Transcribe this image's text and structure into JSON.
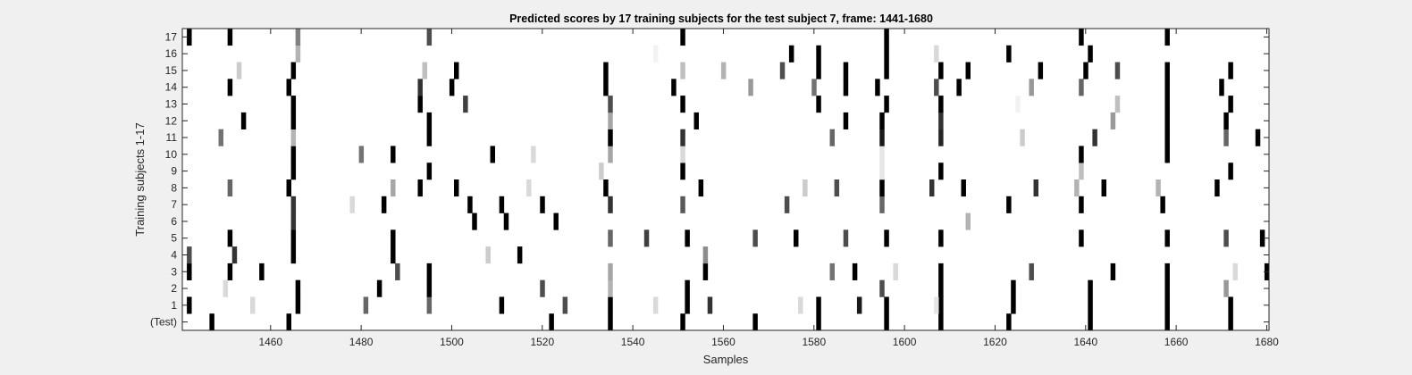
{
  "chart_data": {
    "type": "heatmap",
    "title": "Predicted scores by 17 training subjects for the test subject 7, frame: 1441-1680",
    "xlabel": "Samples",
    "ylabel": "Training subjects 1-17",
    "xlim": [
      1441,
      1680
    ],
    "x_ticks": [
      1460,
      1480,
      1500,
      1520,
      1540,
      1560,
      1580,
      1600,
      1620,
      1640,
      1660,
      1680
    ],
    "rows": [
      "(Test)",
      "1",
      "2",
      "3",
      "4",
      "5",
      "6",
      "7",
      "8",
      "9",
      "10",
      "11",
      "12",
      "13",
      "14",
      "15",
      "16",
      "17"
    ],
    "colormap": "gray (1 = black, 0 = white)",
    "background_value": 0,
    "cells": [
      {
        "row": "(Test)",
        "marks": [
          [
            1447,
            1
          ],
          [
            1464,
            1
          ],
          [
            1522,
            1
          ],
          [
            1535,
            1
          ],
          [
            1551,
            1
          ],
          [
            1567,
            1
          ],
          [
            1581,
            1
          ],
          [
            1596,
            1
          ],
          [
            1608,
            1
          ],
          [
            1623,
            1
          ],
          [
            1641,
            1
          ],
          [
            1658,
            1
          ],
          [
            1672,
            1
          ]
        ]
      },
      {
        "row": "1",
        "marks": [
          [
            1442,
            1
          ],
          [
            1466,
            1
          ],
          [
            1456,
            0.15
          ],
          [
            1481,
            0.6
          ],
          [
            1495,
            0.6
          ],
          [
            1511,
            1
          ],
          [
            1525,
            0.7
          ],
          [
            1535,
            1
          ],
          [
            1545,
            0.15
          ],
          [
            1552,
            1
          ],
          [
            1557,
            0.8
          ],
          [
            1577,
            0.15
          ],
          [
            1581,
            1
          ],
          [
            1590,
            0.9
          ],
          [
            1596,
            1
          ],
          [
            1608,
            1
          ],
          [
            1607,
            0.1
          ],
          [
            1624,
            1
          ],
          [
            1641,
            1
          ],
          [
            1658,
            1
          ],
          [
            1672,
            1
          ]
        ]
      },
      {
        "row": "2",
        "marks": [
          [
            1450,
            0.15
          ],
          [
            1466,
            1
          ],
          [
            1484,
            1
          ],
          [
            1495,
            1
          ],
          [
            1520,
            0.7
          ],
          [
            1535,
            0.3
          ],
          [
            1552,
            1
          ],
          [
            1595,
            0.7
          ],
          [
            1608,
            1
          ],
          [
            1624,
            1
          ],
          [
            1641,
            1
          ],
          [
            1658,
            1
          ],
          [
            1671,
            0.4
          ]
        ]
      },
      {
        "row": "3",
        "marks": [
          [
            1442,
            1
          ],
          [
            1451,
            1
          ],
          [
            1458,
            1
          ],
          [
            1488,
            0.7
          ],
          [
            1495,
            1
          ],
          [
            1535,
            0.35
          ],
          [
            1556,
            1
          ],
          [
            1584,
            0.55
          ],
          [
            1589,
            1
          ],
          [
            1598,
            0.15
          ],
          [
            1608,
            1
          ],
          [
            1628,
            0.7
          ],
          [
            1646,
            1
          ],
          [
            1658,
            1
          ],
          [
            1673,
            0.15
          ],
          [
            1680,
            1
          ]
        ]
      },
      {
        "row": "4",
        "marks": [
          [
            1442,
            0.7
          ],
          [
            1452,
            0.8
          ],
          [
            1465,
            1
          ],
          [
            1487,
            1
          ],
          [
            1508,
            0.2
          ],
          [
            1515,
            1
          ],
          [
            1556,
            0.45
          ]
        ]
      },
      {
        "row": "5",
        "marks": [
          [
            1451,
            1
          ],
          [
            1465,
            1
          ],
          [
            1487,
            1
          ],
          [
            1535,
            0.6
          ],
          [
            1543,
            0.75
          ],
          [
            1552,
            1
          ],
          [
            1567,
            0.7
          ],
          [
            1576,
            1
          ],
          [
            1587,
            0.7
          ],
          [
            1596,
            1
          ],
          [
            1608,
            1
          ],
          [
            1639,
            1
          ],
          [
            1658,
            1
          ],
          [
            1671,
            0.7
          ],
          [
            1679,
            1
          ]
        ]
      },
      {
        "row": "6",
        "marks": [
          [
            1465,
            0.8
          ],
          [
            1505,
            1
          ],
          [
            1512,
            1
          ],
          [
            1523,
            1
          ],
          [
            1614,
            0.3
          ]
        ]
      },
      {
        "row": "7",
        "marks": [
          [
            1465,
            0.8
          ],
          [
            1478,
            0.15
          ],
          [
            1485,
            1
          ],
          [
            1504,
            1
          ],
          [
            1511,
            1
          ],
          [
            1520,
            1
          ],
          [
            1535,
            0.8
          ],
          [
            1551,
            0.65
          ],
          [
            1574,
            0.7
          ],
          [
            1595,
            0.6
          ],
          [
            1623,
            1
          ],
          [
            1639,
            1
          ],
          [
            1657,
            1
          ]
        ]
      },
      {
        "row": "8",
        "marks": [
          [
            1451,
            0.6
          ],
          [
            1464,
            1
          ],
          [
            1487,
            0.35
          ],
          [
            1493,
            1
          ],
          [
            1501,
            1
          ],
          [
            1517,
            0.15
          ],
          [
            1534,
            1
          ],
          [
            1555,
            1
          ],
          [
            1578,
            0.2
          ],
          [
            1585,
            0.7
          ],
          [
            1595,
            1
          ],
          [
            1606,
            0.8
          ],
          [
            1613,
            1
          ],
          [
            1629,
            0.8
          ],
          [
            1638,
            0.3
          ],
          [
            1644,
            1
          ],
          [
            1656,
            0.3
          ],
          [
            1669,
            1
          ]
        ]
      },
      {
        "row": "9",
        "marks": [
          [
            1465,
            1
          ],
          [
            1495,
            1
          ],
          [
            1533,
            0.2
          ],
          [
            1551,
            1
          ],
          [
            1595,
            0.1
          ],
          [
            1608,
            1
          ],
          [
            1639,
            0.25
          ],
          [
            1672,
            1
          ]
        ]
      },
      {
        "row": "10",
        "marks": [
          [
            1465,
            1
          ],
          [
            1480,
            0.55
          ],
          [
            1487,
            1
          ],
          [
            1509,
            1
          ],
          [
            1518,
            0.15
          ],
          [
            1535,
            0.35
          ],
          [
            1551,
            0.15
          ],
          [
            1595,
            0.1
          ],
          [
            1639,
            1
          ],
          [
            1658,
            1
          ]
        ]
      },
      {
        "row": "11",
        "marks": [
          [
            1449,
            0.55
          ],
          [
            1465,
            0.3
          ],
          [
            1495,
            1
          ],
          [
            1535,
            1
          ],
          [
            1551,
            0.8
          ],
          [
            1584,
            0.6
          ],
          [
            1595,
            0.9
          ],
          [
            1608,
            0.85
          ],
          [
            1626,
            0.2
          ],
          [
            1642,
            0.8
          ],
          [
            1658,
            1
          ],
          [
            1671,
            0.6
          ],
          [
            1678,
            1
          ]
        ]
      },
      {
        "row": "12",
        "marks": [
          [
            1454,
            1
          ],
          [
            1465,
            1
          ],
          [
            1495,
            1
          ],
          [
            1535,
            0.35
          ],
          [
            1554,
            1
          ],
          [
            1587,
            1
          ],
          [
            1595,
            1
          ],
          [
            1608,
            0.8
          ],
          [
            1646,
            0.4
          ],
          [
            1658,
            1
          ],
          [
            1671,
            1
          ]
        ]
      },
      {
        "row": "13",
        "marks": [
          [
            1465,
            1
          ],
          [
            1493,
            1
          ],
          [
            1503,
            0.75
          ],
          [
            1535,
            0.7
          ],
          [
            1551,
            1
          ],
          [
            1581,
            1
          ],
          [
            1596,
            1
          ],
          [
            1608,
            1
          ],
          [
            1625,
            0.05
          ],
          [
            1647,
            0.25
          ],
          [
            1658,
            1
          ],
          [
            1672,
            1
          ]
        ]
      },
      {
        "row": "14",
        "marks": [
          [
            1451,
            1
          ],
          [
            1464,
            1
          ],
          [
            1493,
            0.8
          ],
          [
            1500,
            1
          ],
          [
            1534,
            1
          ],
          [
            1549,
            1
          ],
          [
            1566,
            0.4
          ],
          [
            1580,
            0.55
          ],
          [
            1587,
            1
          ],
          [
            1594,
            1
          ],
          [
            1607,
            0.7
          ],
          [
            1612,
            1
          ],
          [
            1628,
            0.4
          ],
          [
            1639,
            0.6
          ],
          [
            1658,
            1
          ],
          [
            1670,
            1
          ]
        ]
      },
      {
        "row": "15",
        "marks": [
          [
            1453,
            0.2
          ],
          [
            1465,
            1
          ],
          [
            1494,
            0.25
          ],
          [
            1501,
            1
          ],
          [
            1534,
            1
          ],
          [
            1551,
            0.25
          ],
          [
            1560,
            0.3
          ],
          [
            1573,
            0.7
          ],
          [
            1581,
            1
          ],
          [
            1587,
            1
          ],
          [
            1596,
            1
          ],
          [
            1608,
            1
          ],
          [
            1614,
            1
          ],
          [
            1630,
            1
          ],
          [
            1640,
            1
          ],
          [
            1647,
            0.7
          ],
          [
            1658,
            1
          ],
          [
            1672,
            1
          ]
        ]
      },
      {
        "row": "16",
        "marks": [
          [
            1466,
            0.3
          ],
          [
            1545,
            0.05
          ],
          [
            1575,
            1
          ],
          [
            1581,
            1
          ],
          [
            1596,
            1
          ],
          [
            1607,
            0.15
          ],
          [
            1623,
            1
          ],
          [
            1641,
            1
          ]
        ]
      },
      {
        "row": "17",
        "marks": [
          [
            1442,
            1
          ],
          [
            1451,
            1
          ],
          [
            1466,
            0.5
          ],
          [
            1495,
            0.7
          ],
          [
            1551,
            1
          ],
          [
            1596,
            1
          ],
          [
            1639,
            1
          ],
          [
            1658,
            1
          ]
        ]
      }
    ]
  }
}
